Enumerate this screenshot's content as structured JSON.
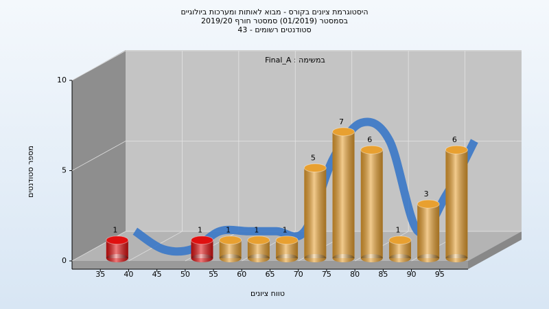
{
  "chart_data": {
    "type": "histogram",
    "title": [
      "היסטוגרמת ציונים בקורס - מבוא לאותות ומערכות ביולוגיים",
      "בסמסטר  (01/2019)  סמסטר חורף 2019/20",
      "סטודנטים רשומים - 43"
    ],
    "annotation": "Final_A : במשימה",
    "x_label": "טווח ציונים",
    "y_label": "מספר סטודנטים",
    "bins": [
      35,
      40,
      45,
      50,
      55,
      60,
      65,
      70,
      75,
      80,
      85,
      90,
      95,
      100
    ],
    "values": [
      1,
      0,
      0,
      1,
      1,
      1,
      1,
      5,
      7,
      6,
      1,
      3,
      6
    ],
    "colors": [
      "#e01010",
      "#e01010",
      "#e01010",
      "#e01010",
      "#e8a030",
      "#e8a030",
      "#e8a030",
      "#e8a030",
      "#e8a030",
      "#e8a030",
      "#e8a030",
      "#e8a030",
      "#e8a030"
    ],
    "curve_color": "#3a78c8",
    "xlim": [
      30,
      100
    ],
    "xticks": [
      35,
      40,
      45,
      50,
      55,
      60,
      65,
      70,
      75,
      80,
      85,
      90,
      95
    ],
    "ylim": [
      0,
      10
    ],
    "yticks": [
      0,
      5,
      10
    ],
    "grid": true
  }
}
